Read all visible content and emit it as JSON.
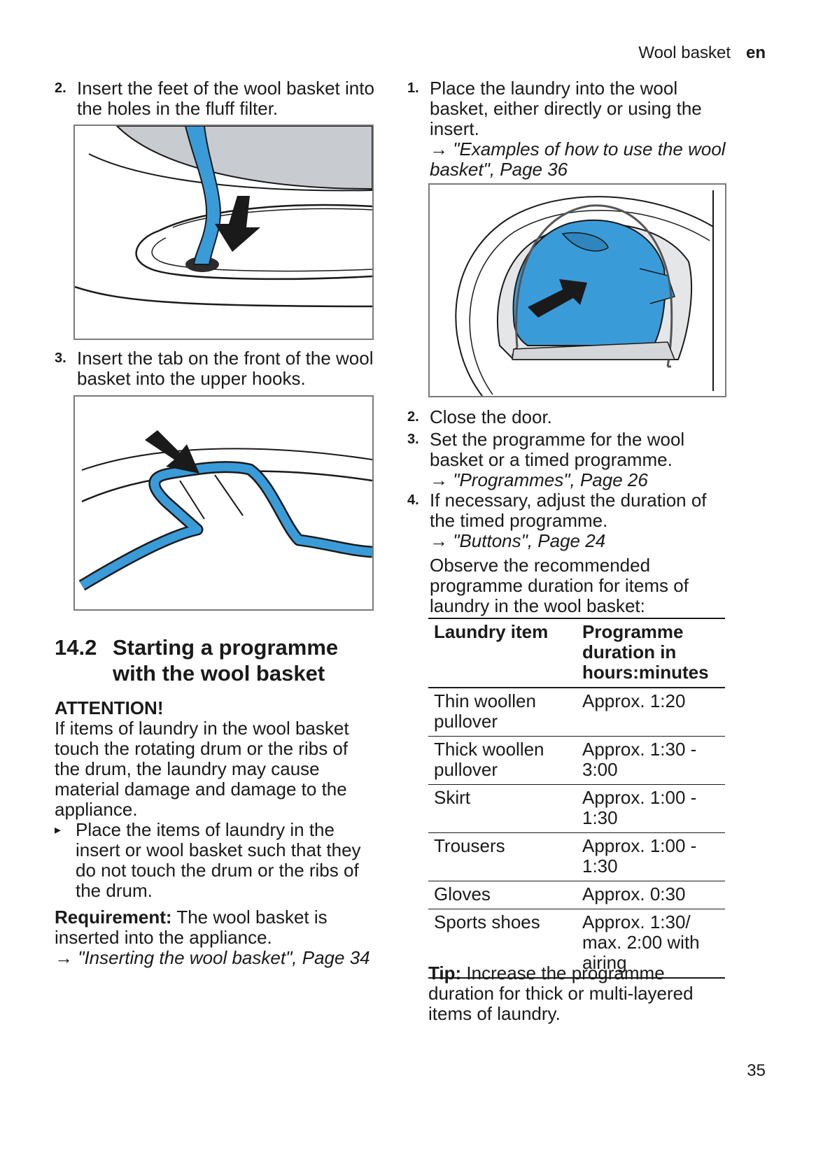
{
  "header": {
    "section": "Wool basket",
    "lang": "en"
  },
  "left": {
    "step2": {
      "num": "2.",
      "text": "Insert the feet of the wool basket into the holes in the fluff filter."
    },
    "step3": {
      "num": "3.",
      "text": "Insert the tab on the front of the wool basket into the upper hooks."
    },
    "heading": {
      "num": "14.2",
      "title": "Starting a programme with the wool basket"
    },
    "attention": {
      "title": "ATTENTION!",
      "body": "If items of laundry in the wool basket touch the rotating drum or the ribs of the drum, the laundry may cause material damage and damage to the appliance.",
      "bullet_marker": "▸",
      "bullet": "Place the items of laundry in the insert or wool basket such that they do not touch the drum or the ribs of the drum."
    },
    "requirement": {
      "label": "Requirement:",
      "text": " The wool basket is inserted into the appliance.",
      "arrow": "→",
      "ref": " \"Inserting the wool basket\", Page 34"
    }
  },
  "right": {
    "step1": {
      "num": "1.",
      "text": "Place the laundry into the wool basket, either directly or using the insert.",
      "arrow": "→",
      "ref": " \"Examples of how to use the wool basket\", Page 36"
    },
    "step2": {
      "num": "2.",
      "text": "Close the door."
    },
    "step3": {
      "num": "3.",
      "text": "Set the programme for the wool basket or a timed programme.",
      "arrow": "→",
      "ref": " \"Programmes\", Page 26"
    },
    "step4": {
      "num": "4.",
      "text": "If necessary, adjust the duration of the timed programme.",
      "arrow": "→",
      "ref": " \"Buttons\", Page 24",
      "note": "Observe the recommended programme duration for items of laundry in the wool basket:"
    },
    "table": {
      "headers": [
        "Laundry item",
        "Programme duration in hours:minutes"
      ],
      "rows": [
        [
          "Thin woollen pullover",
          "Approx. 1:20"
        ],
        [
          "Thick woollen pullover",
          "Approx. 1:30 - 3:00"
        ],
        [
          "Skirt",
          "Approx. 1:00 - 1:30"
        ],
        [
          "Trousers",
          "Approx. 1:00 - 1:30"
        ],
        [
          "Gloves",
          "Approx. 0:30"
        ],
        [
          "Sports shoes",
          "Approx. 1:30/ max. 2:00 with airing"
        ]
      ]
    },
    "tip": {
      "label": "Tip:",
      "text": " Increase the programme duration for thick or multi-layered items of laundry."
    }
  },
  "page_number": "35",
  "colors": {
    "accent_blue": "#3a9bd9",
    "outline": "#1a1a1a",
    "frame": "#7a7a7a",
    "grey_fill": "#c8cbcf"
  }
}
